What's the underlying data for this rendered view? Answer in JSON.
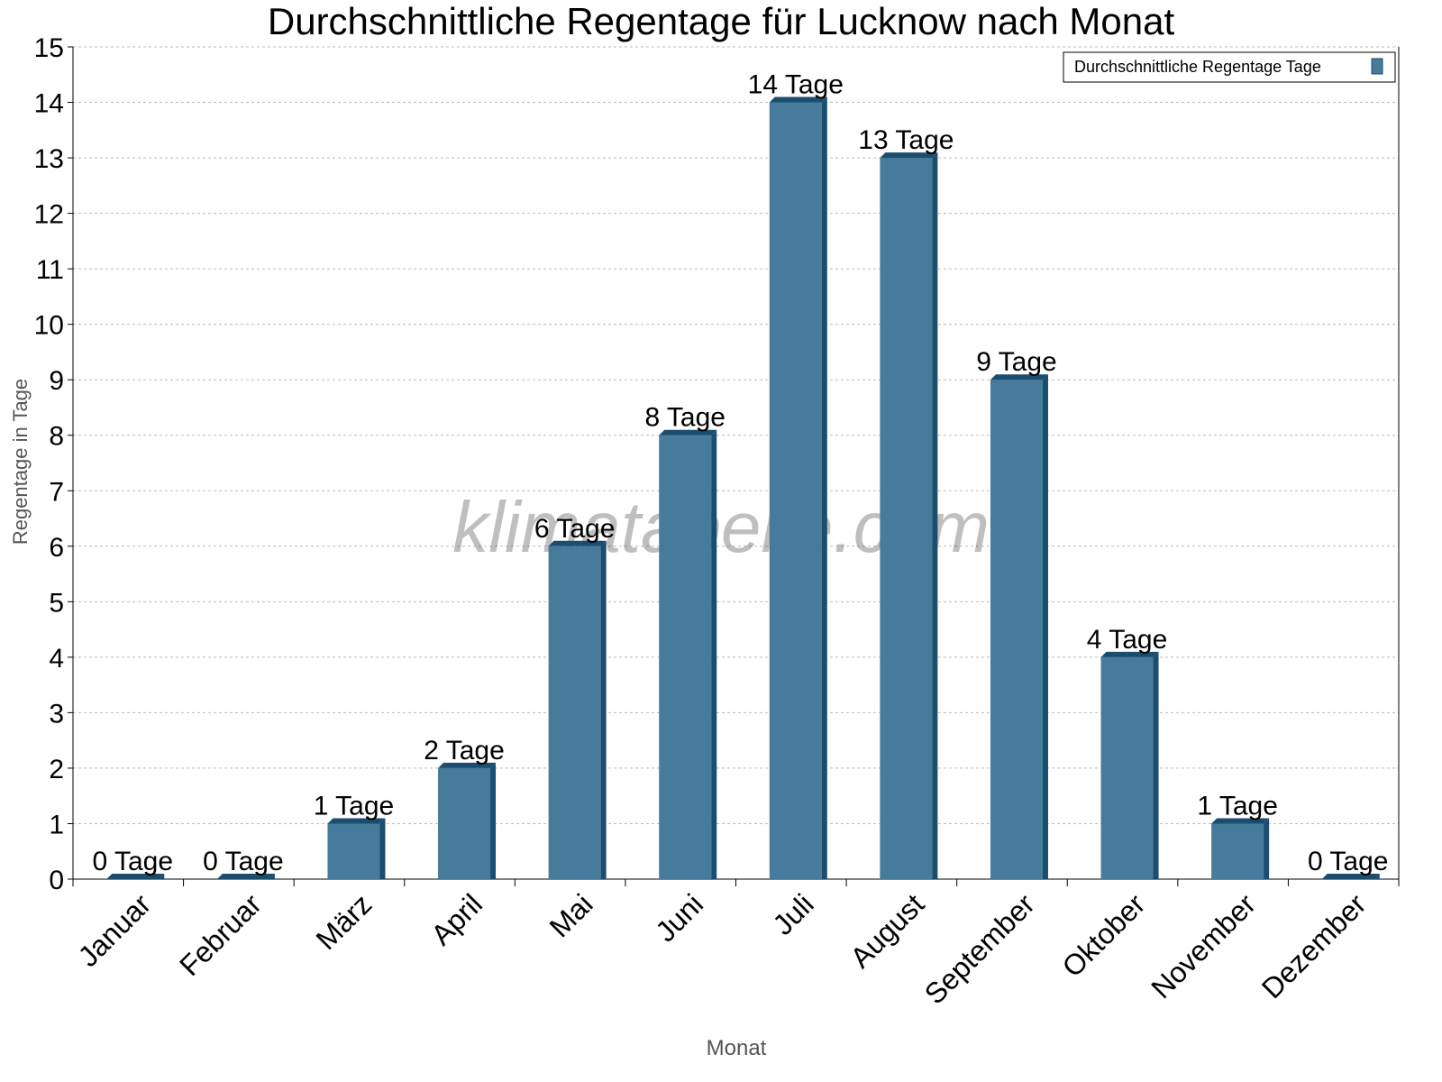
{
  "chart_data": {
    "type": "bar",
    "title": "Durchschnittliche Regentage für Lucknow nach Monat",
    "xlabel": "Monat",
    "ylabel": "Regentage in Tage",
    "categories": [
      "Januar",
      "Februar",
      "März",
      "April",
      "Mai",
      "Juni",
      "Juli",
      "August",
      "September",
      "Oktober",
      "November",
      "Dezember"
    ],
    "series": [
      {
        "name": "Durchschnittliche Regentage Tage",
        "values": [
          0,
          0,
          1,
          2,
          6,
          8,
          14,
          13,
          9,
          4,
          1,
          0
        ],
        "color": "#467b9c",
        "side_color": "#1a4d6e"
      }
    ],
    "value_label_suffix": " Tage",
    "ylim": [
      0,
      15
    ],
    "yticks": [
      0,
      1,
      2,
      3,
      4,
      5,
      6,
      7,
      8,
      9,
      10,
      11,
      12,
      13,
      14,
      15
    ],
    "grid": true,
    "legend_position": "top-right",
    "watermark": "klimatabelle.com"
  }
}
